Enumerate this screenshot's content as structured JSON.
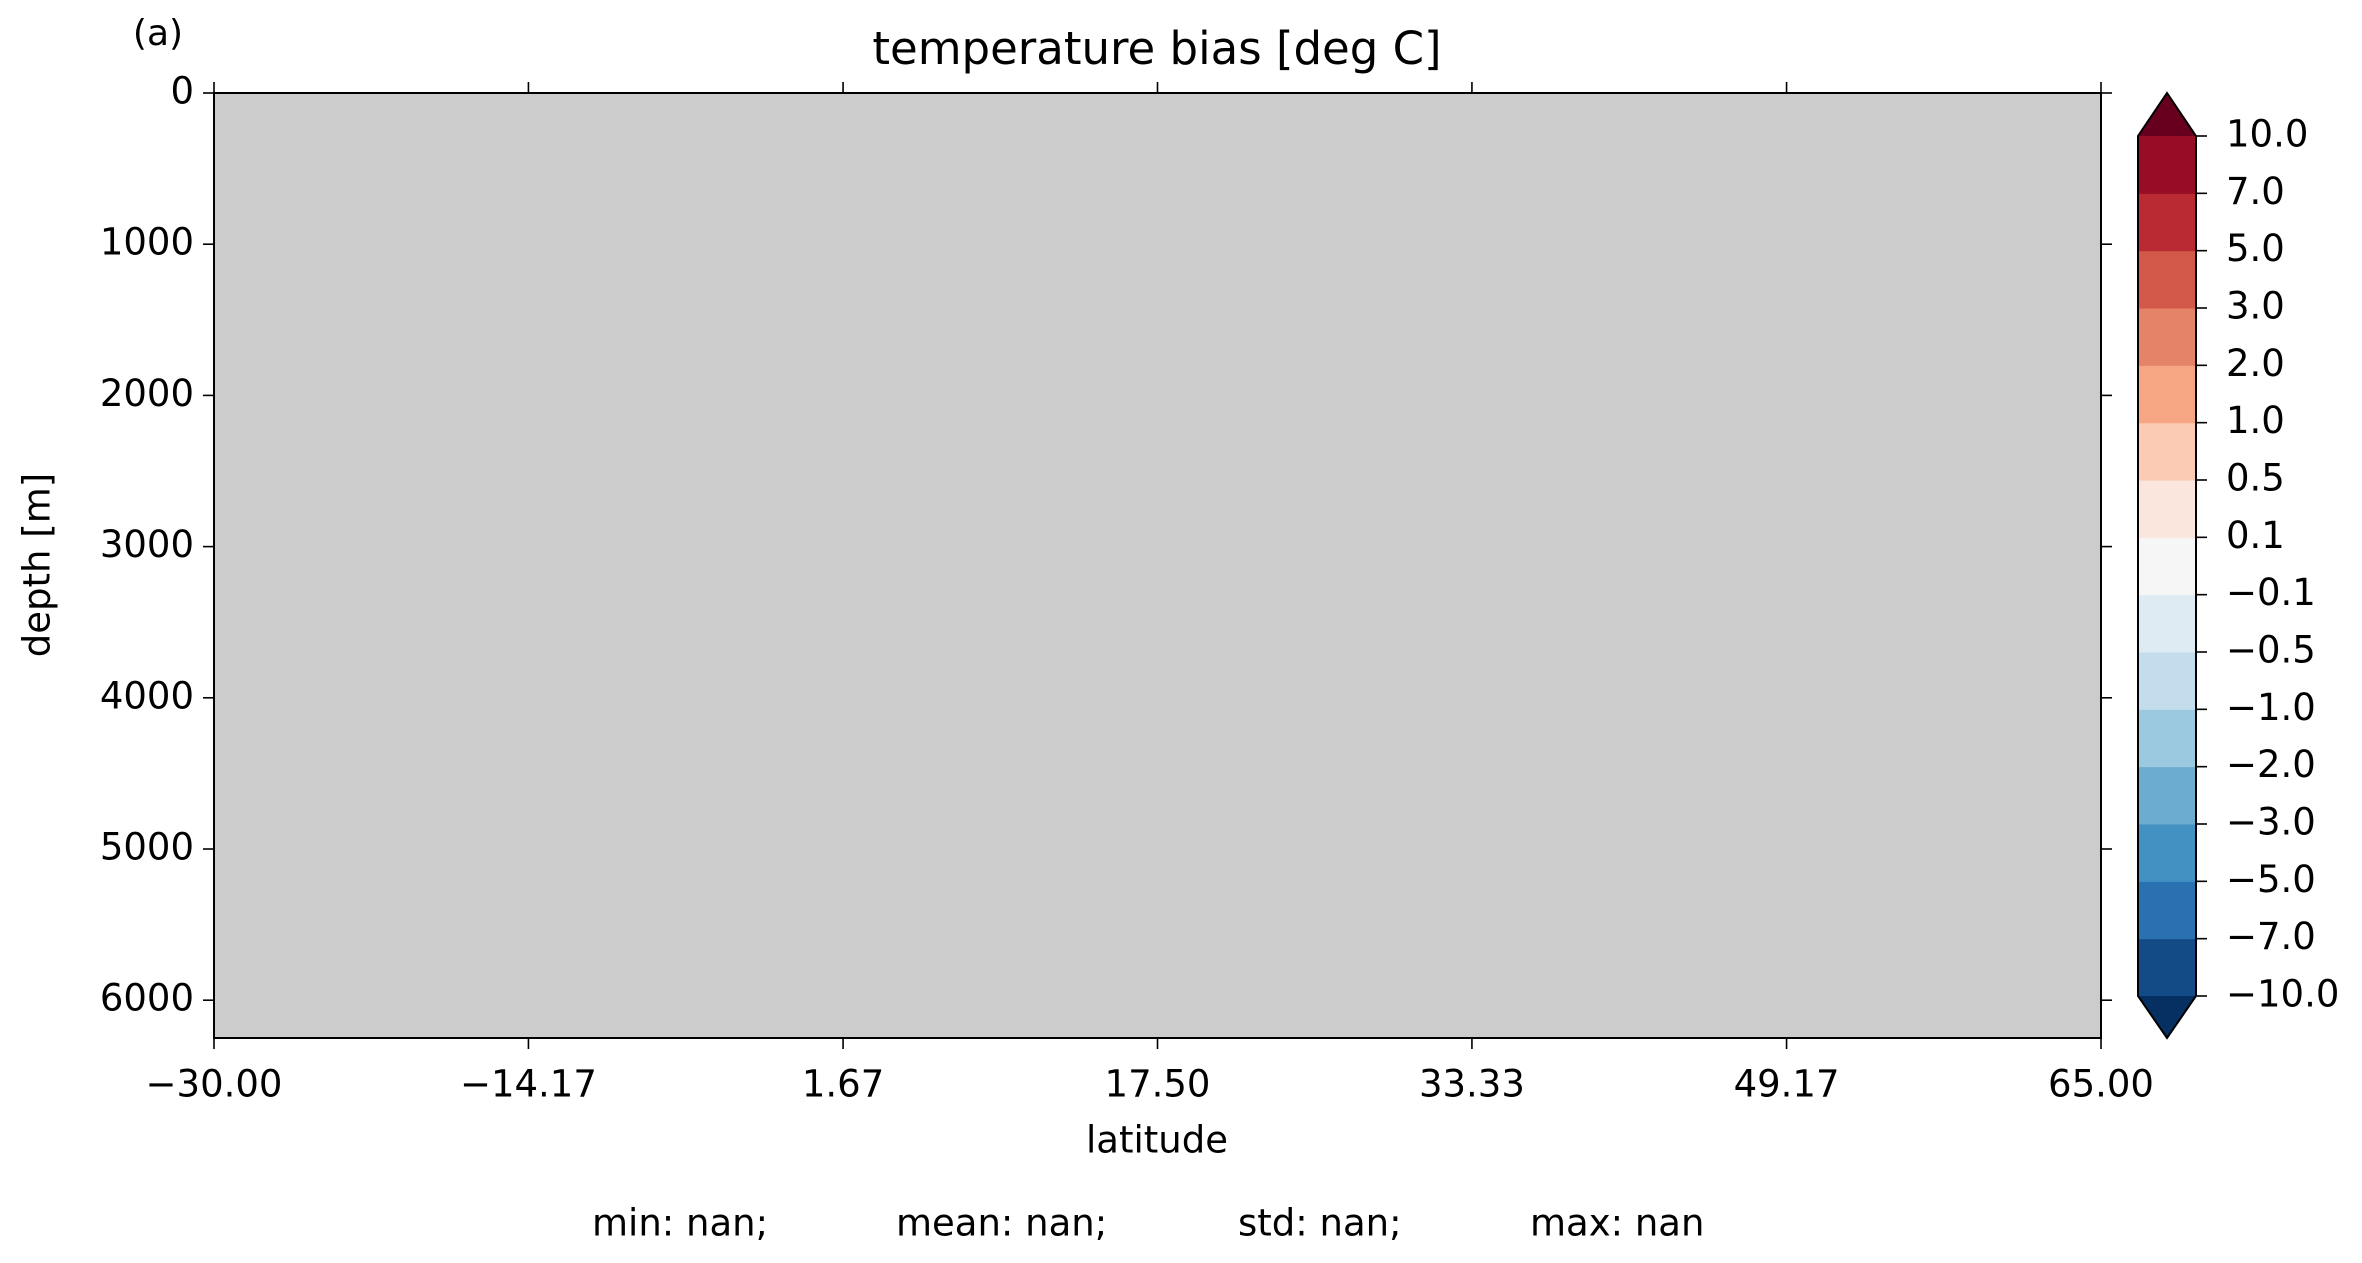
{
  "chart_data": {
    "type": "contour",
    "panel_label": "(a)",
    "title": "temperature bias [deg C]",
    "xlabel": "latitude",
    "ylabel": "depth [m]",
    "background": "#cccccc",
    "xlim": [
      -30,
      65
    ],
    "xticks": [
      {
        "value": -30,
        "label": "−30.00"
      },
      {
        "value": -14.17,
        "label": "−14.17"
      },
      1.67,
      {
        "value": 17.5,
        "label": "17.50"
      },
      33.33,
      49.17,
      {
        "value": 65,
        "label": "65.00"
      }
    ],
    "ylim": [
      6250,
      0
    ],
    "yticks": [
      0,
      1000,
      2000,
      3000,
      4000,
      5000,
      6000
    ],
    "colorbar": {
      "levels": [
        {
          "value": -10,
          "label": "−10.0"
        },
        {
          "value": -7,
          "label": "−7.0"
        },
        {
          "value": -5,
          "label": "−5.0"
        },
        {
          "value": -3,
          "label": "−3.0"
        },
        {
          "value": -2,
          "label": "−2.0"
        },
        {
          "value": -1,
          "label": "−1.0"
        },
        {
          "value": -0.5,
          "label": "−0.5"
        },
        {
          "value": -0.1,
          "label": "−0.1"
        },
        0.1,
        0.5,
        {
          "value": 1,
          "label": "1.0"
        },
        {
          "value": 2,
          "label": "2.0"
        },
        {
          "value": 3,
          "label": "3.0"
        },
        {
          "value": 5,
          "label": "5.0"
        },
        {
          "value": 7,
          "label": "7.0"
        },
        {
          "value": 10,
          "label": "10.0"
        }
      ],
      "colors": [
        "#134b87",
        "#2a71b2",
        "#4291c2",
        "#6bacd0",
        "#9bc9e0",
        "#c3ddec",
        "#deebf2",
        "#f6f6f6",
        "#fae6dc",
        "#fbcbb4",
        "#f6a683",
        "#e58368",
        "#d25849",
        "#b92a32",
        "#970d26"
      ],
      "extend_colors": [
        "#053061",
        "#67001f"
      ]
    },
    "stats": [
      "min: nan;",
      "mean: nan;",
      "std: nan;",
      "max: nan"
    ]
  }
}
